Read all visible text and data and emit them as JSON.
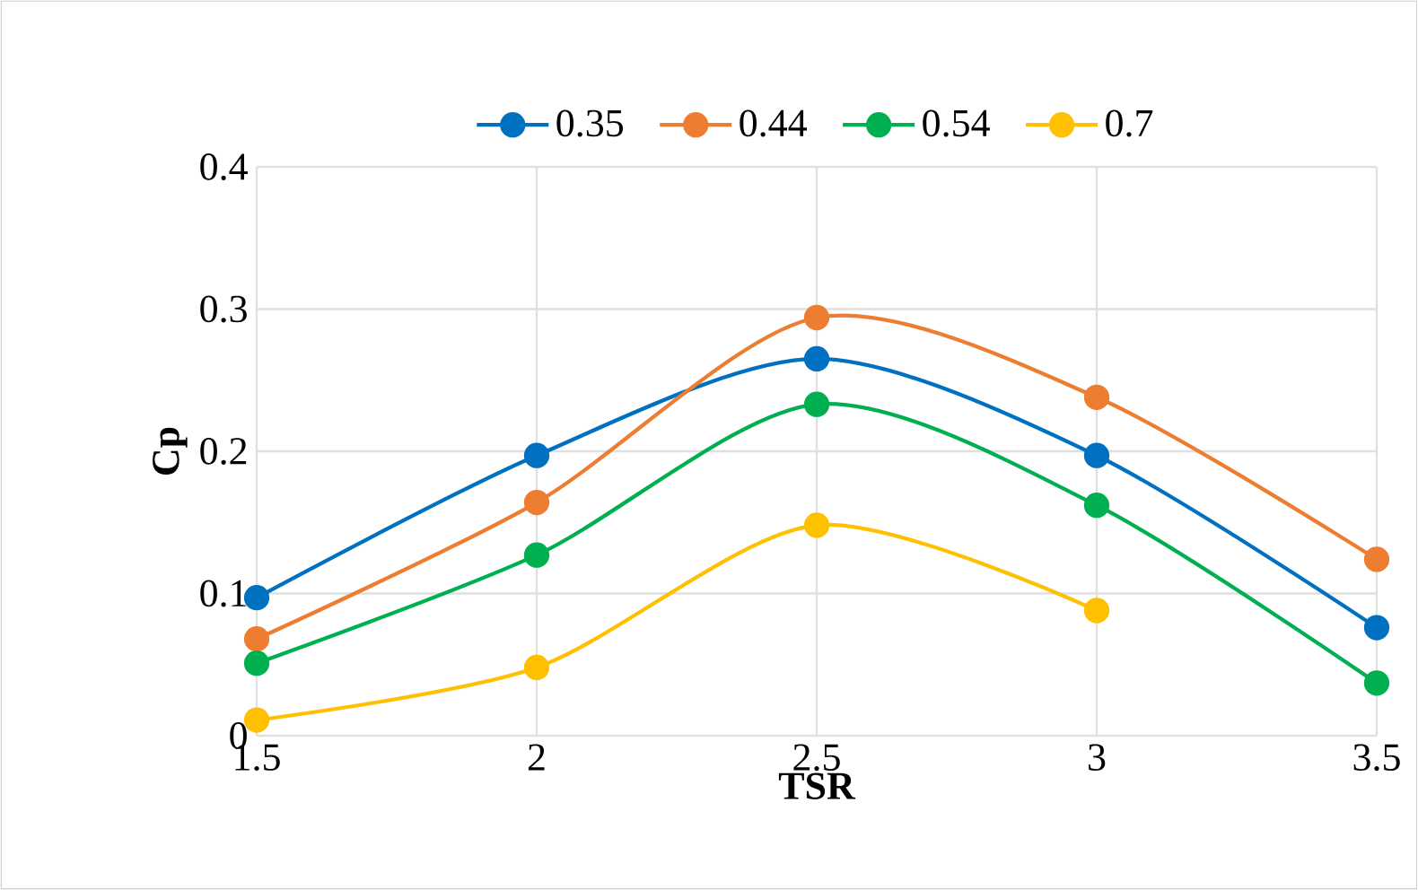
{
  "chart_data": {
    "type": "line",
    "xlabel": "TSR",
    "ylabel": "Cp",
    "x": [
      1.5,
      2,
      2.5,
      3,
      3.5
    ],
    "series": [
      {
        "name": "0.35",
        "color": "#0070c0",
        "values": [
          0.097,
          0.197,
          0.265,
          0.197,
          0.076
        ]
      },
      {
        "name": "0.44",
        "color": "#ed7d31",
        "values": [
          0.068,
          0.164,
          0.294,
          0.238,
          0.124
        ]
      },
      {
        "name": "0.54",
        "color": "#00b050",
        "values": [
          0.051,
          0.127,
          0.233,
          0.162,
          0.037
        ]
      },
      {
        "name": "0.7",
        "color": "#ffc000",
        "values": [
          0.011,
          0.048,
          0.148,
          0.088,
          null
        ]
      }
    ],
    "xlim": [
      1.5,
      3.5
    ],
    "xticks": [
      1.5,
      2,
      2.5,
      3,
      3.5
    ],
    "ylim": [
      0,
      0.4
    ],
    "yticks": [
      0,
      0.1,
      0.2,
      0.3,
      0.4
    ],
    "grid": true,
    "legend": "top",
    "marker": "circle",
    "line_style": "solid"
  }
}
